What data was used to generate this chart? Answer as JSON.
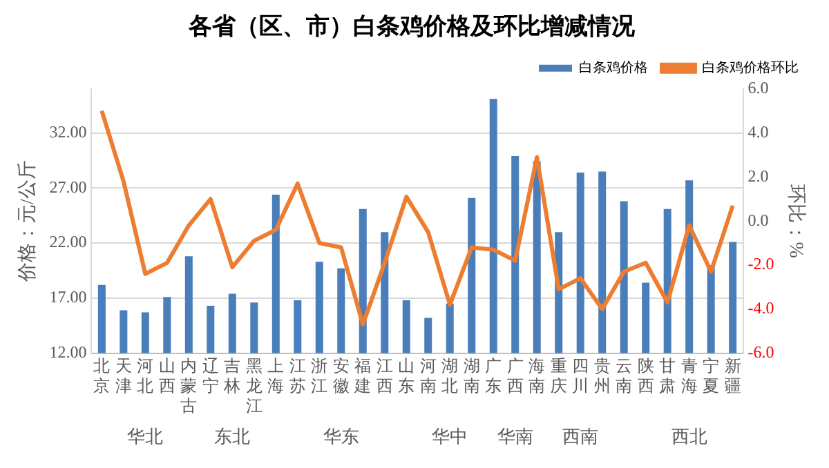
{
  "chart_data": {
    "type": "bar",
    "title": "各省（区、市）白条鸡价格及环比增减情况",
    "categories": [
      "北京",
      "天津",
      "河北",
      "山西",
      "内蒙古",
      "辽宁",
      "吉林",
      "黑龙江",
      "上海",
      "江苏",
      "浙江",
      "安徽",
      "福建",
      "江西",
      "山东",
      "河南",
      "湖北",
      "湖南",
      "广东",
      "广西",
      "海南",
      "重庆",
      "四川",
      "贵州",
      "云南",
      "陕西",
      "甘肃",
      "青海",
      "宁夏",
      "新疆"
    ],
    "series": [
      {
        "name": "白条鸡价格",
        "color": "#4a7ebb",
        "values": [
          18.2,
          15.9,
          15.7,
          17.1,
          20.8,
          16.3,
          17.4,
          16.6,
          26.4,
          16.8,
          20.3,
          19.7,
          25.1,
          23.0,
          16.8,
          15.2,
          16.5,
          26.1,
          35.1,
          29.9,
          29.4,
          23.0,
          28.4,
          28.5,
          25.8,
          18.4,
          25.1,
          27.7,
          20.0,
          22.1
        ]
      },
      {
        "name": "白条鸡价格环比",
        "type": "line",
        "axis": "y2",
        "color": "#ed7d31",
        "values": [
          5.0,
          1.8,
          -2.4,
          -1.9,
          -0.2,
          1.0,
          -2.1,
          -0.9,
          -0.4,
          1.7,
          -1.0,
          -1.2,
          -4.7,
          -1.9,
          1.1,
          -0.5,
          -3.8,
          -1.2,
          -1.3,
          -1.8,
          2.9,
          -3.1,
          -2.6,
          -4.0,
          -2.3,
          -1.9,
          -3.7,
          -0.2,
          -2.3,
          0.7
        ]
      }
    ],
    "ylabel": "价格：元/公斤",
    "y2label": "环比：%",
    "ylim": [
      12,
      36
    ],
    "yticks": [
      {
        "value": 12,
        "label": "12.00"
      },
      {
        "value": 17,
        "label": "17.00"
      },
      {
        "value": 22,
        "label": "22.00"
      },
      {
        "value": 27,
        "label": "27.00"
      },
      {
        "value": 32,
        "label": "32.00"
      }
    ],
    "y2lim": [
      -6,
      6
    ],
    "y2ticks": [
      {
        "value": -6,
        "label": "-6.0"
      },
      {
        "value": -4,
        "label": "-4.0"
      },
      {
        "value": -2,
        "label": "-2.0"
      },
      {
        "value": 0,
        "label": "0.0"
      },
      {
        "value": 2,
        "label": "2.0"
      },
      {
        "value": 4,
        "label": "4.0"
      },
      {
        "value": 6,
        "label": "6.0"
      }
    ],
    "annotations": [
      {
        "text": "华北",
        "x": "河北"
      },
      {
        "text": "东北",
        "x": "吉林"
      },
      {
        "text": "华东",
        "x": "安徽"
      },
      {
        "text": "华中",
        "x": "湖北"
      },
      {
        "text": "华南",
        "x": "广西"
      },
      {
        "text": "西南",
        "x": "四川"
      },
      {
        "text": "西北",
        "x": "青海"
      }
    ],
    "grid": "y",
    "legend": "top right",
    "marker": "none",
    "line_style": "solid"
  }
}
